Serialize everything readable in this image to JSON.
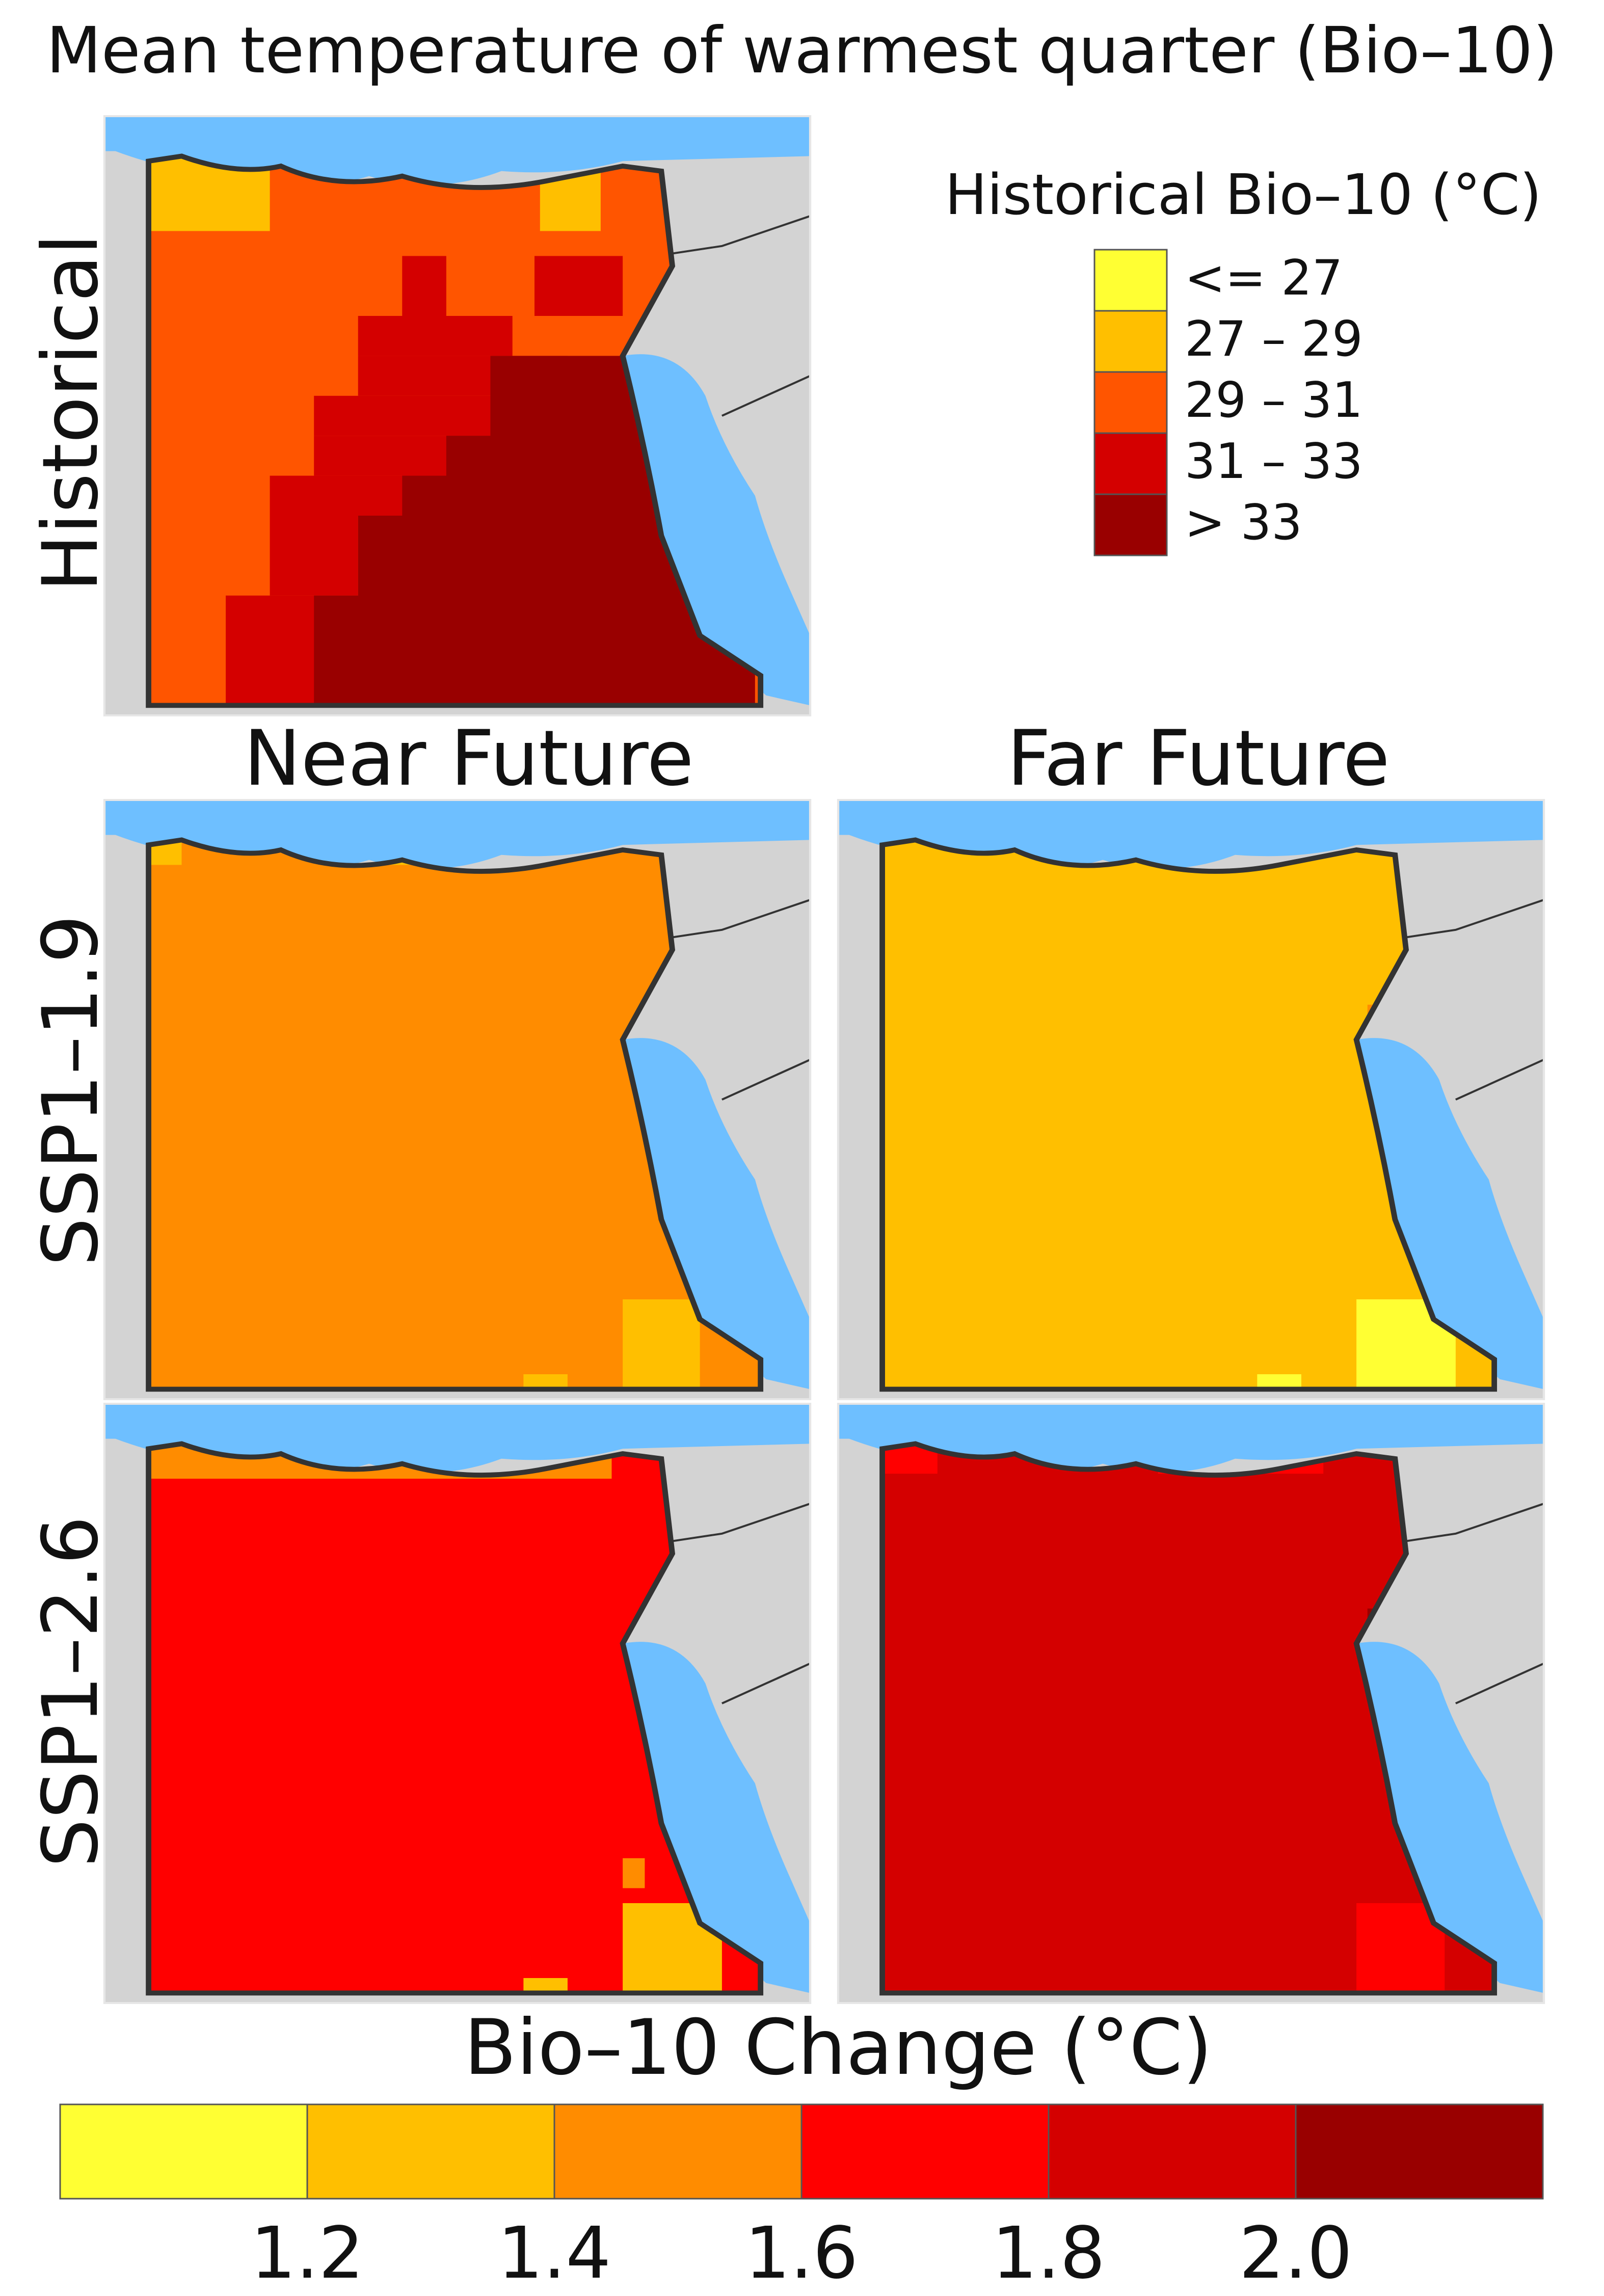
{
  "title": "Mean temperature of warmest quarter (Bio–10)",
  "column_headers": [
    "Near Future",
    "Far Future"
  ],
  "row_labels": [
    "Historical",
    "SSP1–1.9",
    "SSP1–2.6"
  ],
  "historical_legend": {
    "title": "Historical Bio–10 (°C)",
    "classes": [
      {
        "label": "<= 27",
        "color": "#ffff33"
      },
      {
        "label": "27 – 29",
        "color": "#ffbf00"
      },
      {
        "label": "29 – 31",
        "color": "#ff5500"
      },
      {
        "label": "31 – 33",
        "color": "#d40000"
      },
      {
        "label": "> 33",
        "color": "#990000"
      }
    ]
  },
  "change_legend": {
    "title": "Bio–10 Change (°C)",
    "colors": [
      "#ffff33",
      "#ffbf00",
      "#ff8c00",
      "#ff0000",
      "#d40000",
      "#990000"
    ],
    "tick_labels": [
      "1.2",
      "1.4",
      "1.6",
      "1.8",
      "2.0"
    ]
  },
  "colors": {
    "sea": "#6ebfff",
    "land_outside": "#d3d3d3",
    "border": "#333333"
  },
  "maps": [
    {
      "panel": "historical",
      "base_class": 2
    },
    {
      "panel": "near_ssp119",
      "base_color_index": 2
    },
    {
      "panel": "far_ssp119",
      "base_color_index": 1
    },
    {
      "panel": "near_ssp126",
      "base_color_index": 3
    },
    {
      "panel": "far_ssp126",
      "base_color_index": 4
    }
  ]
}
